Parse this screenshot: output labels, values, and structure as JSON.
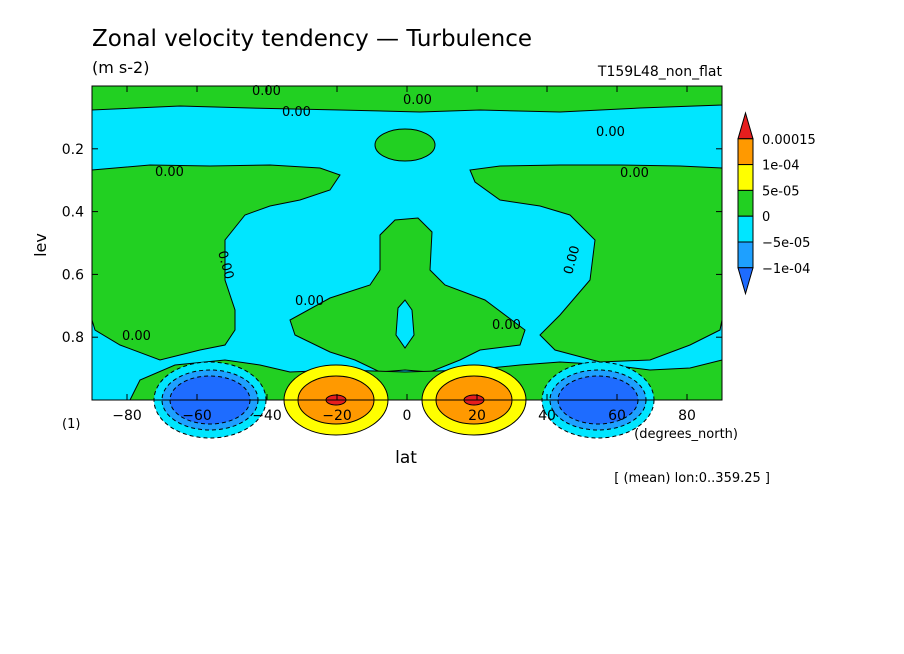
{
  "chart_data": {
    "type": "heatmap",
    "title": "Zonal velocity tendency — Turbulence",
    "units": "(m s-2)",
    "experiment": "T159L48_non_flat",
    "xlabel": "lat",
    "x_units": "(degrees_north)",
    "ylabel": "lev",
    "y_units": "(1)",
    "subtitle": "[ (mean) lon:0..359.25 ]",
    "xlim": [
      -90,
      90
    ],
    "ylim": [
      0.0,
      1.0
    ],
    "y_reversed": true,
    "xticks": [
      -80,
      -60,
      -40,
      -20,
      0,
      20,
      40,
      60,
      80
    ],
    "yticks": [
      0.2,
      0.4,
      0.6,
      0.8
    ],
    "contour_label": "0.00",
    "colorbar": {
      "labels": [
        "0.00015",
        "1e-04",
        "5e-05",
        "0",
        "-5e-05",
        "-1e-04"
      ],
      "levels": [
        {
          "from": null,
          "to": -0.0001,
          "color": "#1e6cff"
        },
        {
          "from": -0.0001,
          "to": -5e-05,
          "color": "#1ea0ff"
        },
        {
          "from": -5e-05,
          "to": 0,
          "color": "#00e6ff"
        },
        {
          "from": 0,
          "to": 5e-05,
          "color": "#22d022"
        },
        {
          "from": 5e-05,
          "to": 0.0001,
          "color": "#ffff00"
        },
        {
          "from": 0.0001,
          "to": 0.00015,
          "color": "#ff9900"
        },
        {
          "from": 0.00015,
          "to": null,
          "color": "#e61e1e"
        }
      ]
    }
  }
}
